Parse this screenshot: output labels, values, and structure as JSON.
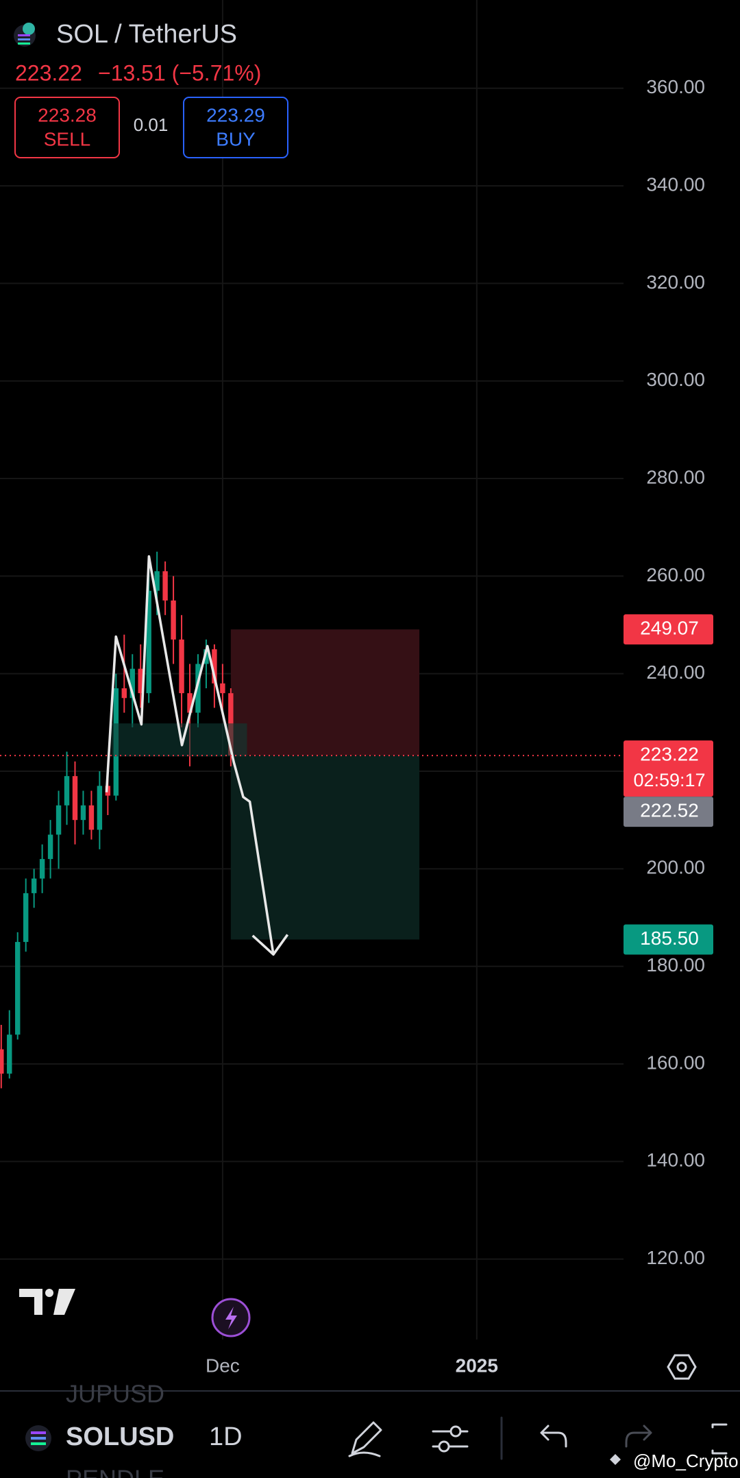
{
  "header": {
    "symbol": "SOL / TetherUS",
    "last": "223.22",
    "change": "−13.51 (−5.71%)",
    "sell_price": "223.28",
    "sell": "SELL",
    "spread": "0.01",
    "buy_price": "223.29",
    "buy": "BUY"
  },
  "chart_data": {
    "type": "candlestick",
    "x": [
      3,
      4,
      5,
      6,
      7,
      8,
      9,
      10,
      11,
      12,
      13,
      14,
      15,
      16,
      17,
      18,
      19,
      20,
      21,
      22,
      23,
      24,
      25,
      26,
      27,
      28,
      29,
      30,
      31
    ],
    "open": [
      163,
      158,
      166,
      185,
      195,
      198,
      202,
      207,
      213,
      219,
      210,
      213,
      208,
      217,
      215,
      237,
      235,
      241,
      236,
      257,
      261,
      255,
      247,
      236,
      232,
      242,
      245,
      238,
      236
    ],
    "high": [
      168,
      171,
      187,
      198,
      200,
      205,
      210,
      216,
      224,
      222,
      216,
      216,
      220,
      220,
      240,
      248,
      244,
      246,
      262,
      265,
      263,
      260,
      252,
      242,
      244,
      247,
      246,
      242,
      237
    ],
    "low": [
      155,
      157,
      165,
      183,
      192,
      195,
      198,
      200,
      209,
      205,
      207,
      206,
      204,
      211,
      214,
      232,
      229,
      233,
      234,
      252,
      252,
      242,
      229,
      221,
      229,
      237,
      233,
      232,
      221
    ],
    "close": [
      158,
      166,
      185,
      195,
      198,
      202,
      207,
      213,
      219,
      210,
      213,
      208,
      217,
      215,
      237,
      235,
      241,
      236,
      257,
      261,
      255,
      247,
      236,
      232,
      242,
      245,
      238,
      236,
      223.22
    ],
    "up_color": "#089981",
    "down_color": "#f23645",
    "xlim": [
      2.85,
      78.9
    ],
    "ylim": [
      103.5,
      378.1
    ],
    "xticks": [
      {
        "value": 30,
        "label": "Dec"
      },
      {
        "value": 61,
        "label": "2025"
      }
    ],
    "yticks": [
      {
        "value": 120,
        "label": "120.00"
      },
      {
        "value": 140,
        "label": "140.00"
      },
      {
        "value": 160,
        "label": "160.00"
      },
      {
        "value": 180,
        "label": "180.00"
      },
      {
        "value": 200,
        "label": "200.00"
      },
      {
        "value": 220,
        "label": "220.00"
      },
      {
        "value": 240,
        "label": "240.00"
      },
      {
        "value": 260,
        "label": "260.00"
      },
      {
        "value": 280,
        "label": "280.00"
      },
      {
        "value": 300,
        "label": "300.00"
      },
      {
        "value": 320,
        "label": "320.00"
      },
      {
        "value": 340,
        "label": "340.00"
      },
      {
        "value": 360,
        "label": "360.00"
      }
    ],
    "grid": true,
    "position": {
      "x": [
        31,
        54
      ],
      "stop": 249.07,
      "entry": 223.22,
      "target": 185.5
    },
    "markers": [
      {
        "value": 249.07,
        "color": "#f23645"
      },
      {
        "value": 223.22,
        "color": "#f23645",
        "countdown": "02:59:17"
      },
      {
        "value": 222.52,
        "color": "#787b86"
      },
      {
        "value": 185.5,
        "label": "185.50",
        "color": "#089981"
      }
    ]
  },
  "footer": {
    "symbol": "SOLUSD",
    "interval": "1D",
    "prev_symbol": "JUPUSD",
    "next_symbol": "PENDLE",
    "watermark": "@Mo_Crypto"
  }
}
